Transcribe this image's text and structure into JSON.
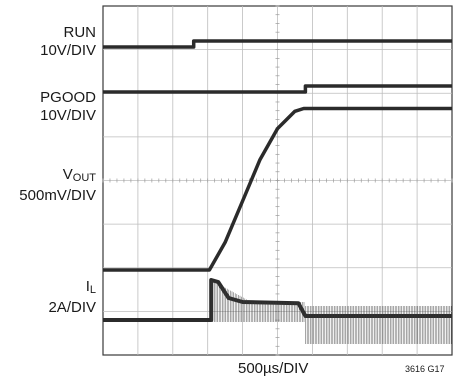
{
  "chart_data": {
    "type": "line",
    "divisions": {
      "x": 10,
      "y": 8
    },
    "x_unit": "500µs/DIV",
    "channels": [
      {
        "name": "RUN",
        "scale": "10V/DIV",
        "name_main": "RUN",
        "name_sub": "",
        "points": [
          [
            0,
            0.8
          ],
          [
            2.6,
            0.8
          ],
          [
            2.6,
            1.1
          ],
          [
            10,
            1.1
          ]
        ]
      },
      {
        "name": "PGOOD",
        "scale": "10V/DIV",
        "name_main": "PGOOD",
        "name_sub": "",
        "points": [
          [
            0,
            0.8
          ],
          [
            5.8,
            0.8
          ],
          [
            5.8,
            1.1
          ],
          [
            10,
            1.1
          ]
        ]
      },
      {
        "name": "VOUT",
        "scale": "500mV/DIV",
        "name_main": "V",
        "name_sub": "OUT",
        "points": [
          [
            0,
            0
          ],
          [
            3.05,
            0
          ],
          [
            3.5,
            0.8
          ],
          [
            4.0,
            2.0
          ],
          [
            4.5,
            3.2
          ],
          [
            5.0,
            4.1
          ],
          [
            5.5,
            4.6
          ],
          [
            5.75,
            4.68
          ],
          [
            10,
            4.68
          ]
        ]
      },
      {
        "name": "IL",
        "scale": "2A/DIV",
        "name_main": "I",
        "name_sub": "L",
        "points": [
          [
            0,
            0
          ],
          [
            3.1,
            0
          ],
          [
            3.1,
            1.0
          ],
          [
            3.3,
            0.95
          ],
          [
            3.6,
            0.55
          ],
          [
            4.0,
            0.45
          ],
          [
            5.6,
            0.42
          ],
          [
            5.8,
            0.1
          ],
          [
            10,
            0.1
          ]
        ]
      }
    ],
    "footnote": "3616 G17"
  }
}
